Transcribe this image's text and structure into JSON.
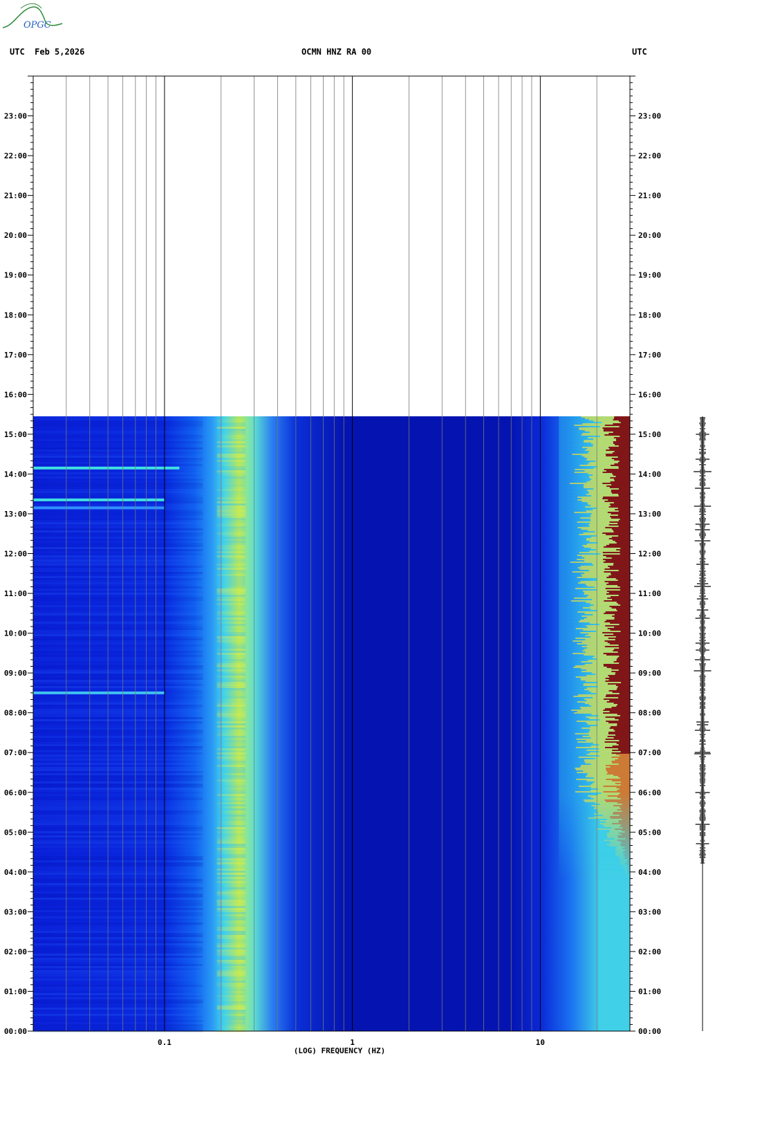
{
  "header": {
    "left": "UTC  Feb 5,2026",
    "center": "OCMN HNZ RA 00",
    "right": "UTC",
    "logo_text": "OPGC"
  },
  "colors": {
    "background": "#ffffff",
    "spec_low": "#0a10c8",
    "spec_mid": "#1e90ff",
    "spec_cyan": "#3ce6e6",
    "spec_yellow": "#e6e632",
    "spec_red": "#8b0000",
    "grid": "#000000"
  },
  "chart_data": {
    "type": "heatmap",
    "title": "OCMN HNZ RA 00",
    "xlabel": "(LOG) FREQUENCY (HZ)",
    "ylabel": "UTC",
    "x_scale": "log",
    "x_range_hz": [
      0.02,
      30
    ],
    "x_tick_labels": [
      {
        "value": 0.1,
        "label": "0.1"
      },
      {
        "value": 1,
        "label": "1"
      },
      {
        "value": 10,
        "label": "10"
      }
    ],
    "y_range_hours": [
      0,
      24
    ],
    "y_tick_labels": [
      "00:00",
      "01:00",
      "02:00",
      "03:00",
      "04:00",
      "05:00",
      "06:00",
      "07:00",
      "08:00",
      "09:00",
      "10:00",
      "11:00",
      "12:00",
      "13:00",
      "14:00",
      "15:00",
      "16:00",
      "17:00",
      "18:00",
      "19:00",
      "20:00",
      "21:00",
      "22:00",
      "23:00"
    ],
    "data_end_hour": 15.45,
    "bands": [
      {
        "name": "microseism",
        "freq_hz": [
          0.18,
          0.3
        ],
        "level": "high",
        "time_hours": [
          0,
          15.45
        ]
      },
      {
        "name": "long period",
        "freq_hz": [
          0.02,
          0.15
        ],
        "level": "low",
        "time_hours": [
          0,
          15.45
        ]
      },
      {
        "name": "high frequency noise",
        "freq_hz": [
          12,
          30
        ],
        "level": "very high",
        "time_hours": [
          6,
          15.45
        ]
      }
    ],
    "grid": true
  }
}
